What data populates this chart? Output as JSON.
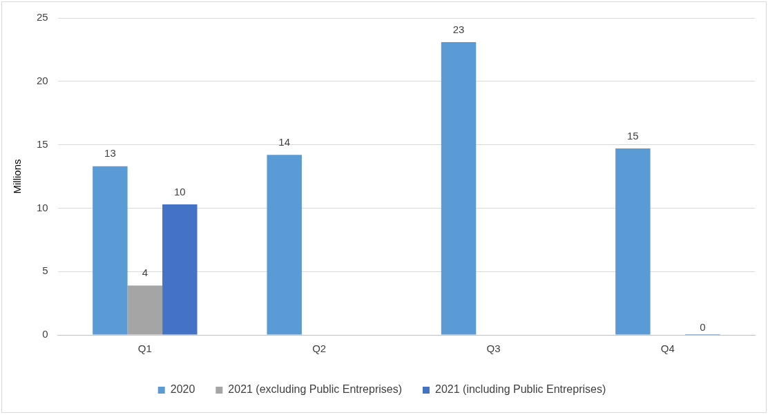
{
  "chart_data": {
    "type": "bar",
    "ylabel": "Millions",
    "categories": [
      "Q1",
      "Q2",
      "Q3",
      "Q4"
    ],
    "series": [
      {
        "name": "2020",
        "color": "#5b9bd5",
        "values": [
          13.3,
          14.2,
          23.1,
          14.7
        ],
        "value_labels": [
          "13",
          "14",
          "23",
          "15"
        ]
      },
      {
        "name": "2021 (excluding Public Entreprises)",
        "color": "#a5a5a5",
        "values": [
          3.9,
          null,
          null,
          null
        ],
        "value_labels": [
          "4",
          null,
          null,
          null
        ]
      },
      {
        "name": "2021 (including Public Entreprises)",
        "color": "#4472c4",
        "values": [
          10.3,
          null,
          null,
          0
        ],
        "value_labels": [
          "10",
          null,
          null,
          "0"
        ]
      }
    ],
    "ylim": [
      0,
      25
    ],
    "yticks": [
      0,
      5,
      10,
      15,
      20,
      25
    ],
    "grid": "y",
    "legend": "bottom"
  }
}
